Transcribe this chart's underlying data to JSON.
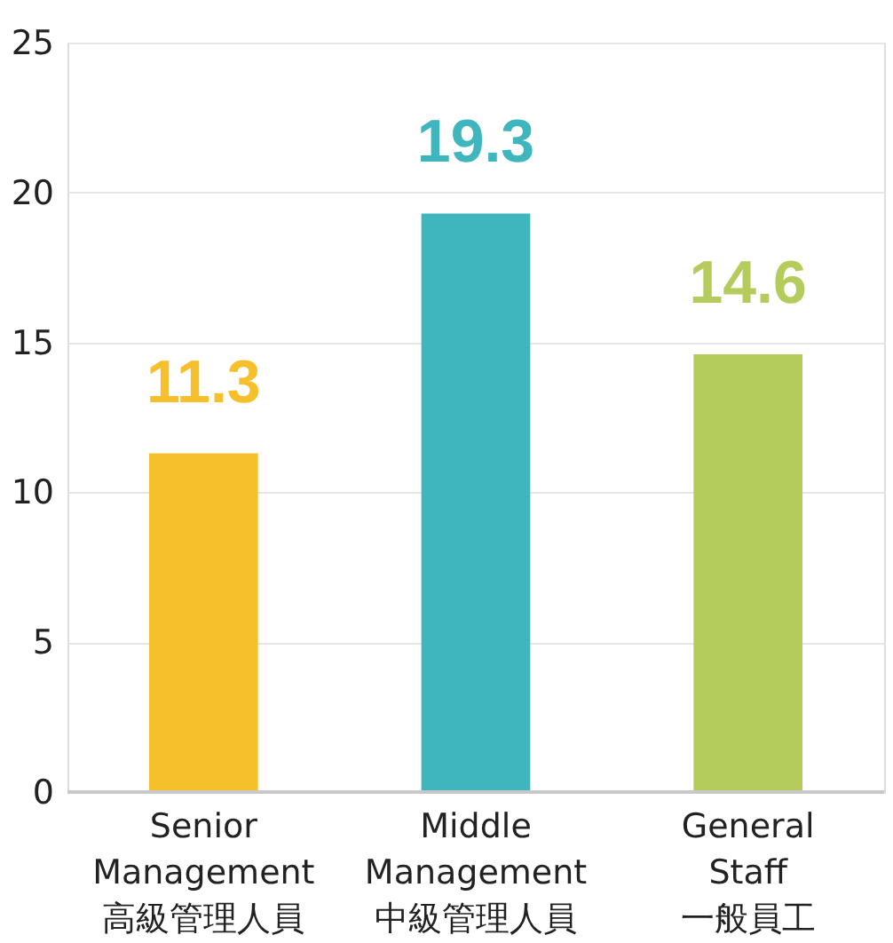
{
  "chart_data": {
    "type": "bar",
    "categories": [
      "Senior\nManagement\n高級管理人員",
      "Middle\nManagement\n中級管理人員",
      "General\nStaff\n一般員工"
    ],
    "values": [
      11.3,
      19.3,
      14.6
    ],
    "colors": [
      "#f5c02c",
      "#3fb5bd",
      "#b3cc5c"
    ],
    "data_labels": true,
    "ylim": [
      0,
      25
    ],
    "yticks": [
      0,
      5,
      10,
      15,
      20,
      25
    ],
    "grid": "y"
  }
}
